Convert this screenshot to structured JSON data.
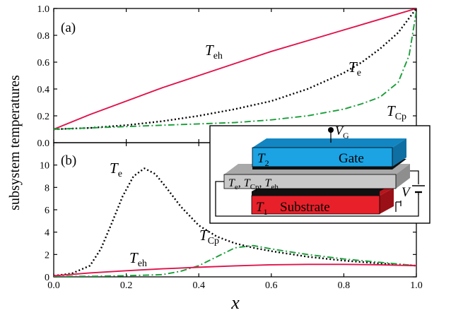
{
  "chart_data": [
    {
      "panel": "(a)",
      "type": "line",
      "xlim": [
        0.0,
        1.0
      ],
      "ylim": [
        0.0,
        1.0
      ],
      "x_ticks": [
        "0.0",
        "0.2",
        "0.4",
        "0.6",
        "0.8",
        "1.0"
      ],
      "y_ticks": [
        "0.0",
        "0.2",
        "0.4",
        "0.6",
        "0.8",
        "1.0"
      ],
      "series": [
        {
          "name": "T_eh",
          "label_main": "T",
          "label_sub": "eh",
          "color": "#e0134b",
          "style": "solid",
          "x": [
            0,
            0.1,
            0.2,
            0.3,
            0.4,
            0.5,
            0.6,
            0.7,
            0.8,
            0.9,
            1.0
          ],
          "y": [
            0.1,
            0.21,
            0.31,
            0.41,
            0.5,
            0.59,
            0.68,
            0.76,
            0.84,
            0.92,
            1.0
          ]
        },
        {
          "name": "T_e",
          "label_main": "T",
          "label_sub": "e",
          "color": "#000000",
          "style": "dotted",
          "x": [
            0,
            0.1,
            0.2,
            0.3,
            0.4,
            0.5,
            0.6,
            0.7,
            0.8,
            0.85,
            0.9,
            0.95,
            1.0
          ],
          "y": [
            0.1,
            0.11,
            0.13,
            0.16,
            0.2,
            0.25,
            0.31,
            0.4,
            0.52,
            0.6,
            0.7,
            0.82,
            1.0
          ]
        },
        {
          "name": "T_Cp",
          "label_main": "T",
          "label_sub": "Cp",
          "color": "#1a9e3a",
          "style": "dashdot",
          "x": [
            0,
            0.1,
            0.2,
            0.3,
            0.4,
            0.5,
            0.6,
            0.7,
            0.8,
            0.85,
            0.9,
            0.95,
            0.98,
            1.0
          ],
          "y": [
            0.1,
            0.11,
            0.12,
            0.13,
            0.14,
            0.15,
            0.17,
            0.2,
            0.25,
            0.29,
            0.34,
            0.45,
            0.65,
            0.98
          ]
        }
      ]
    },
    {
      "panel": "(b)",
      "type": "line",
      "xlim": [
        0.0,
        1.0
      ],
      "ylim": [
        0,
        12
      ],
      "x_ticks": [
        "0.0",
        "0.2",
        "0.4",
        "0.6",
        "0.8",
        "1.0"
      ],
      "y_ticks": [
        "0",
        "2",
        "4",
        "6",
        "8",
        "10"
      ],
      "series": [
        {
          "name": "T_e",
          "label_main": "T",
          "label_sub": "e",
          "color": "#000000",
          "style": "dotted",
          "x": [
            0,
            0.05,
            0.1,
            0.13,
            0.16,
            0.19,
            0.22,
            0.25,
            0.28,
            0.31,
            0.35,
            0.4,
            0.45,
            0.5,
            0.55,
            0.6,
            0.7,
            0.8,
            0.9,
            1.0
          ],
          "y": [
            0.1,
            0.3,
            1.0,
            2.5,
            4.8,
            7.2,
            9.0,
            9.7,
            9.2,
            8.0,
            6.3,
            4.6,
            3.6,
            3.0,
            2.6,
            2.3,
            1.8,
            1.45,
            1.2,
            1.0
          ]
        },
        {
          "name": "T_Cp",
          "label_main": "T",
          "label_sub": "Cp",
          "color": "#1a9e3a",
          "style": "dashdot",
          "x": [
            0,
            0.1,
            0.2,
            0.3,
            0.35,
            0.4,
            0.45,
            0.5,
            0.55,
            0.6,
            0.7,
            0.8,
            0.9,
            1.0
          ],
          "y": [
            0.05,
            0.05,
            0.1,
            0.2,
            0.5,
            1.0,
            1.8,
            2.6,
            2.8,
            2.5,
            2.0,
            1.6,
            1.3,
            1.0
          ]
        },
        {
          "name": "T_eh",
          "label_main": "T",
          "label_sub": "eh",
          "color": "#e0134b",
          "style": "solid",
          "x": [
            0,
            0.1,
            0.2,
            0.3,
            0.4,
            0.5,
            0.6,
            0.7,
            0.8,
            0.9,
            1.0
          ],
          "y": [
            0.1,
            0.35,
            0.55,
            0.72,
            0.86,
            0.98,
            1.08,
            1.12,
            1.12,
            1.08,
            1.0
          ]
        }
      ]
    }
  ],
  "ylabel": "subsystem temperatures",
  "xlabel": "x",
  "inset": {
    "gate": {
      "label": "Gate",
      "t_main": "T",
      "t_sub": "2",
      "color": "#1ba3e3"
    },
    "channel": {
      "label_parts": [
        {
          "main": "T",
          "sub": "e"
        },
        {
          "main": "T",
          "sub": "Cp"
        },
        {
          "main": "T",
          "sub": "eh"
        }
      ],
      "color": "#c8c8c8"
    },
    "substrate": {
      "label": "Substrate",
      "t_main": "T",
      "t_sub": "1",
      "color": "#e8202a"
    },
    "vg": {
      "main": "V",
      "sub": "G"
    },
    "v": {
      "main": "V"
    }
  }
}
